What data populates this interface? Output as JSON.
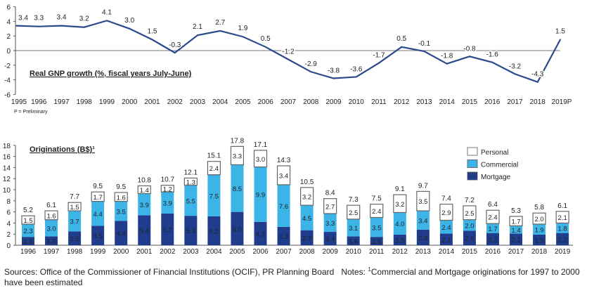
{
  "chart_data": [
    {
      "type": "line",
      "title": "Real GNP growth (%, fiscal years July-June)",
      "note": "P = Preliminary",
      "x": [
        "1995",
        "1996",
        "1997",
        "1998",
        "1999",
        "2000",
        "2001",
        "2002",
        "2003",
        "2004",
        "2005",
        "2006",
        "2007",
        "2008",
        "2009",
        "2010",
        "2011",
        "2012",
        "2013",
        "2014",
        "2015",
        "2016",
        "2017",
        "2018",
        "2019P"
      ],
      "values": [
        3.4,
        3.3,
        3.4,
        3.2,
        4.1,
        3.0,
        1.5,
        -0.3,
        2.1,
        2.7,
        1.9,
        0.5,
        -1.2,
        -2.9,
        -3.8,
        -3.6,
        -1.7,
        0.5,
        -0.1,
        -1.8,
        -0.8,
        -1.6,
        -3.2,
        -4.3,
        1.5
      ],
      "labels": [
        "3.4",
        "3.3",
        "3.4",
        "3.2",
        "4.1",
        "3.0",
        "1.5",
        "-0.3",
        "2.1",
        "2.7",
        "1.9",
        "0.5",
        "-1.2",
        "-2.9",
        "-3.8",
        "-3.6",
        "-1.7",
        "0.5",
        "-0.1",
        "-1.8",
        "-0.8",
        "-1.6",
        "-3.2",
        "-4.3",
        "1.5"
      ],
      "ylim": [
        -6,
        6
      ],
      "yticks": [
        "6",
        "4",
        "2",
        "0",
        "-2",
        "-4",
        "-6"
      ],
      "color": "#2b4a8b"
    },
    {
      "type": "bar",
      "stacked": true,
      "title": "Originations (B$)¹",
      "categories": [
        "1996",
        "1997",
        "1998",
        "1999",
        "2000",
        "2001",
        "2002",
        "2003",
        "2004",
        "2005",
        "2006",
        "2007",
        "2008",
        "2009",
        "2010",
        "2011",
        "2012",
        "2013",
        "2014",
        "2015",
        "2016",
        "2017",
        "2018",
        "2019"
      ],
      "series": [
        {
          "name": "Mortgage",
          "color": "#1f3d8c",
          "values": [
            1.5,
            1.6,
            2.5,
            3.5,
            4.4,
            5.4,
            5.7,
            5.3,
            5.2,
            6.0,
            4.2,
            3.3,
            2.7,
            2.4,
            1.6,
            1.5,
            1.9,
            2.8,
            2.1,
            2.6,
            2.2,
            2.1,
            1.9,
            2.2
          ],
          "labels": [
            "1.5",
            "1.6",
            "2.5",
            "3.5",
            "4.4",
            "5.4",
            "5.7",
            "5.3",
            "5.2",
            "6.0",
            "4.2",
            "3.3",
            "2.7",
            "2.4",
            "1.6",
            "1.5",
            "1.9",
            "2.8",
            "2.1",
            "2.6",
            "2.2",
            "2.1",
            "1.9",
            "2.2"
          ]
        },
        {
          "name": "Commercial",
          "color": "#3db4e8",
          "values": [
            2.3,
            3.0,
            3.7,
            4.4,
            3.5,
            3.9,
            3.9,
            5.5,
            7.5,
            8.5,
            9.9,
            7.6,
            4.5,
            3.3,
            3.1,
            3.5,
            4.0,
            3.4,
            2.4,
            2.0,
            1.7,
            1.4,
            1.9,
            1.8
          ],
          "labels": [
            "2.3",
            "3.0",
            "3.7",
            "4.4",
            "3.5",
            "3.9",
            "3.9",
            "5.5",
            "7.5",
            "8.5",
            "9.9",
            "7.6",
            "4.5",
            "3.3",
            "3.1",
            "3.5",
            "4.0",
            "3.4",
            "2.4",
            "2.0",
            "1.7",
            "1.4",
            "1.9",
            "1.8"
          ]
        },
        {
          "name": "Personal",
          "color": "#ffffff",
          "values": [
            1.5,
            1.6,
            1.5,
            1.7,
            1.6,
            1.4,
            1.2,
            1.3,
            2.4,
            3.3,
            3.0,
            3.4,
            3.2,
            2.7,
            2.5,
            2.4,
            3.2,
            3.5,
            2.9,
            2.5,
            2.4,
            1.7,
            2.0,
            2.1
          ],
          "labels": [
            "1.5",
            "1.6",
            "1.5",
            "1.7",
            "1.6",
            "1.4",
            "1.2",
            "1.3",
            "2.4",
            "3.3",
            "3.0",
            "3.4",
            "3.2",
            "2.7",
            "2.5",
            "2.4",
            "3.2",
            "3.5",
            "2.9",
            "2.5",
            "2.4",
            "1.7",
            "2.0",
            "2.1"
          ]
        }
      ],
      "totals": [
        "5.2",
        "6.1",
        "7.7",
        "9.5",
        "9.5",
        "10.8",
        "10.7",
        "12.1",
        "15.1",
        "17.8",
        "17.1",
        "14.3",
        "10.5",
        "8.4",
        "7.3",
        "7.5",
        "9.1",
        "9.7",
        "7.4",
        "7.2",
        "6.4",
        "5.3",
        "5.8",
        "6.1"
      ],
      "ylim": [
        0,
        18
      ],
      "yticks": [
        "0",
        "2",
        "4",
        "6",
        "8",
        "10",
        "12",
        "14",
        "16",
        "18"
      ],
      "legend": [
        "Personal",
        "Commercial",
        "Mortgage"
      ],
      "legend_position": "top-right"
    }
  ],
  "footer": {
    "sources": "Sources: Office of the Commissioner of Financial Institutions (OCIF), PR Planning Board",
    "notes_label": "Notes:",
    "note_marker": "1",
    "note_text": "Commercial and Mortgage originations for 1997 to 2000 have been estimated"
  }
}
